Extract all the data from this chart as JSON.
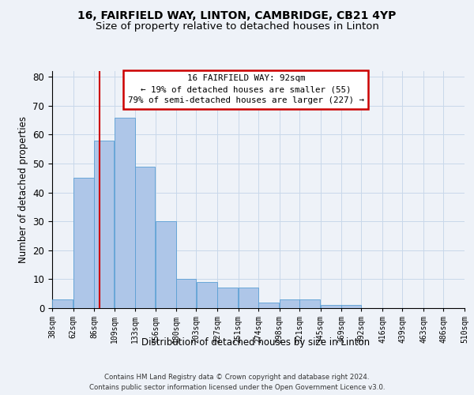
{
  "title": "16, FAIRFIELD WAY, LINTON, CAMBRIDGE, CB21 4YP",
  "subtitle": "Size of property relative to detached houses in Linton",
  "xlabel": "Distribution of detached houses by size in Linton",
  "ylabel": "Number of detached properties",
  "bin_edges": [
    38,
    62,
    86,
    109,
    133,
    156,
    180,
    203,
    227,
    251,
    274,
    298,
    321,
    345,
    369,
    392,
    416,
    439,
    463,
    486,
    510
  ],
  "bar_heights": [
    3,
    45,
    58,
    66,
    49,
    30,
    10,
    9,
    7,
    7,
    2,
    3,
    3,
    1,
    1,
    0,
    0,
    0,
    0,
    0
  ],
  "bar_color": "#aec6e8",
  "bar_edgecolor": "#5a9fd4",
  "property_size": 92,
  "property_label": "16 FAIRFIELD WAY: 92sqm",
  "annotation_line1": "← 19% of detached houses are smaller (55)",
  "annotation_line2": "79% of semi-detached houses are larger (227) →",
  "vline_color": "#cc0000",
  "annotation_box_edgecolor": "#cc0000",
  "annotation_box_facecolor": "#ffffff",
  "ylim": [
    0,
    82
  ],
  "yticks": [
    0,
    10,
    20,
    30,
    40,
    50,
    60,
    70,
    80
  ],
  "grid_color": "#c8d8ea",
  "footer_line1": "Contains HM Land Registry data © Crown copyright and database right 2024.",
  "footer_line2": "Contains public sector information licensed under the Open Government Licence v3.0.",
  "bg_color": "#eef2f8",
  "title_fontsize": 10,
  "subtitle_fontsize": 9.5
}
